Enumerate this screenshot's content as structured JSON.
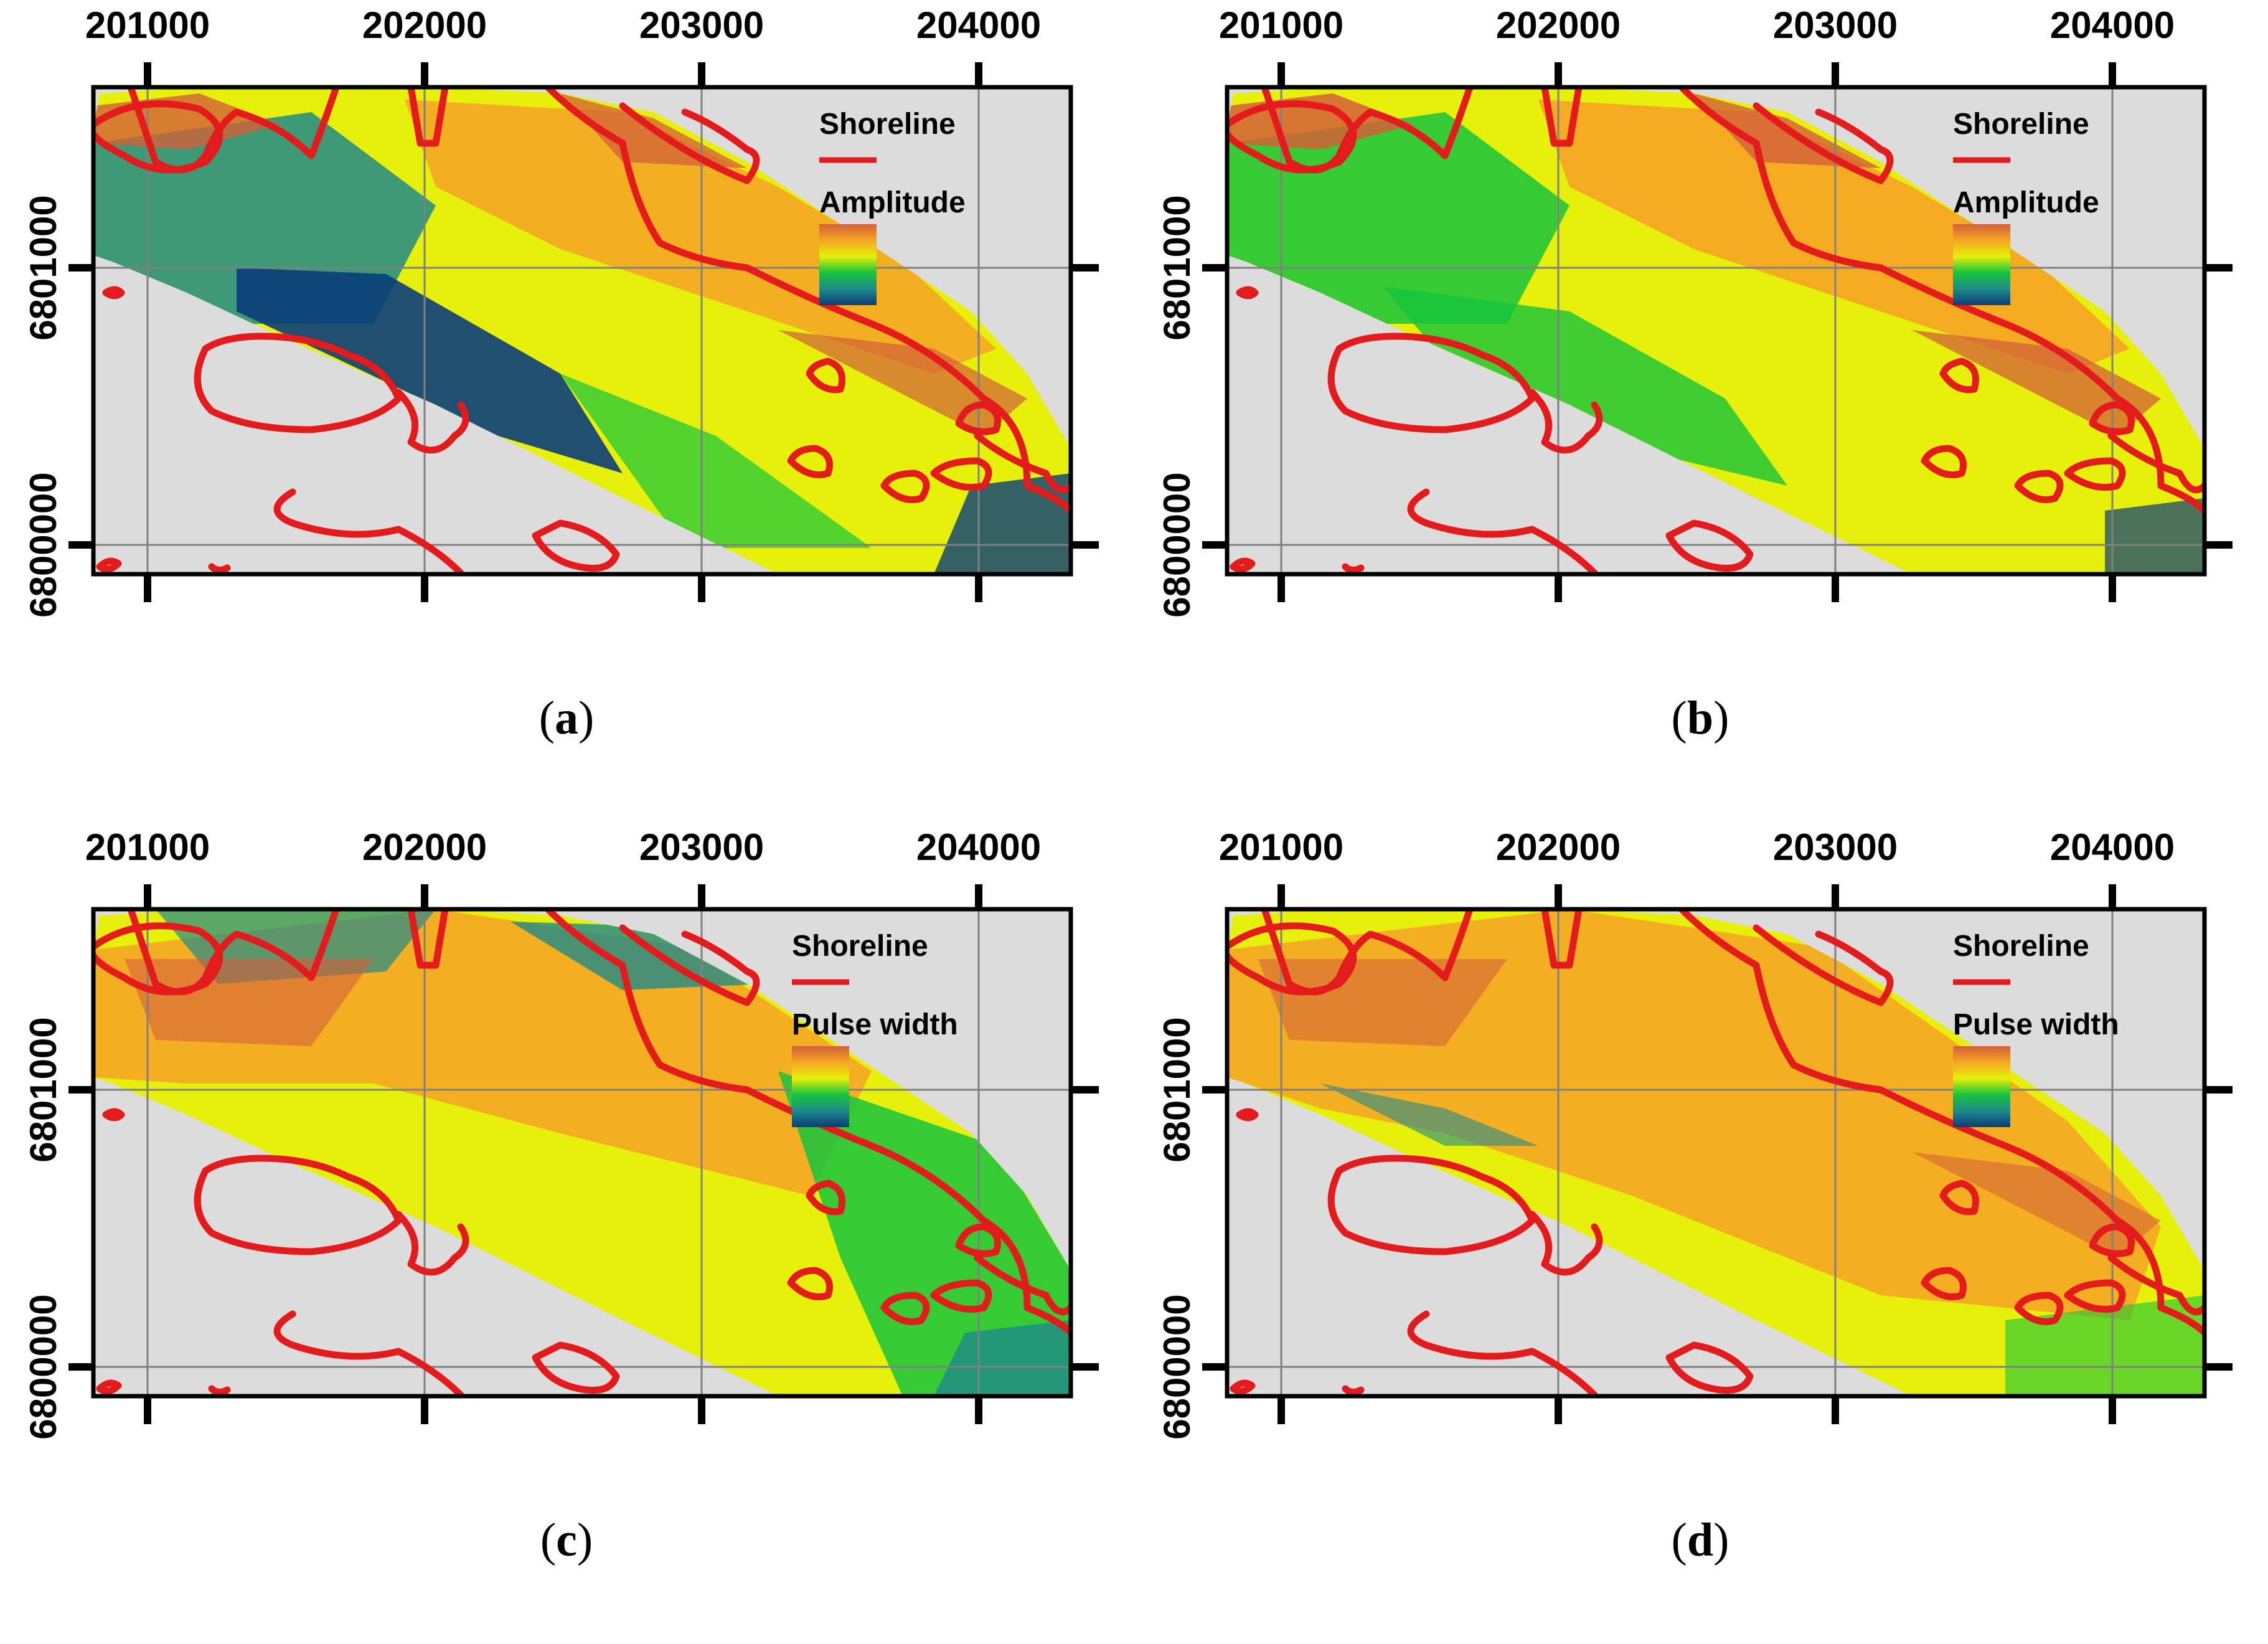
{
  "map": {
    "x_ticks": [
      "201000",
      "202000",
      "203000",
      "204000"
    ],
    "y_ticks": [
      "6801000",
      "6800000"
    ],
    "colors": {
      "background": "#dcdcdc",
      "shoreline": "#e41a1c",
      "grid": "#808080",
      "ramp": [
        "#0a3d7a",
        "#1f8a8a",
        "#16c43c",
        "#e6f00a",
        "#f5a623",
        "#d2603a"
      ]
    }
  },
  "panels": [
    {
      "id": "a",
      "label": "a",
      "legend": {
        "shoreline": "Shoreline",
        "layer": "Amplitude"
      },
      "style": "amp-a"
    },
    {
      "id": "b",
      "label": "b",
      "legend": {
        "shoreline": "Shoreline",
        "layer": "Amplitude"
      },
      "style": "amp-b"
    },
    {
      "id": "c",
      "label": "c",
      "legend": {
        "shoreline": "Shoreline",
        "layer": "Pulse width"
      },
      "style": "pw-c"
    },
    {
      "id": "d",
      "label": "d",
      "legend": {
        "shoreline": "Shoreline",
        "layer": "Pulse width"
      },
      "style": "pw-d"
    }
  ]
}
